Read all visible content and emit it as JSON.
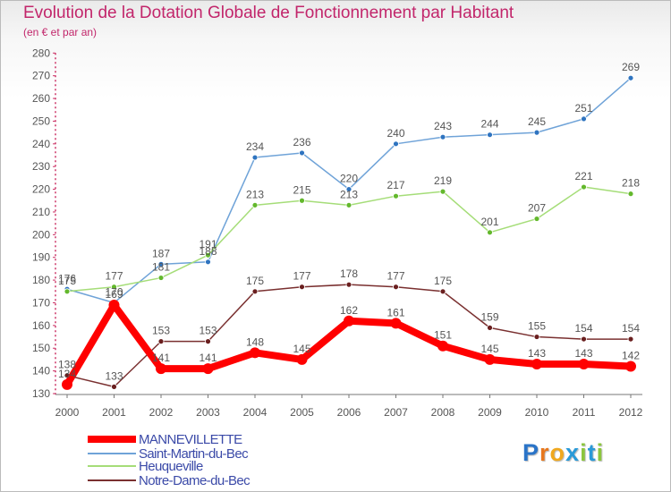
{
  "title": "Evolution de la Dotation Globale de Fonctionnement par Habitant",
  "subtitle": "(en € et par an)",
  "logo": {
    "letters": [
      "P",
      "r",
      "o",
      "x",
      "i",
      "t",
      "i"
    ],
    "colors": [
      "#2a74c8",
      "#e8781e",
      "#f0a81e",
      "#2a9ad8",
      "#8cc63e",
      "#2a9ad8",
      "#8cc63e"
    ]
  },
  "chart_data": {
    "type": "line",
    "categories": [
      "2000",
      "2001",
      "2002",
      "2003",
      "2004",
      "2005",
      "2006",
      "2007",
      "2008",
      "2009",
      "2010",
      "2011",
      "2012"
    ],
    "ylim": [
      130,
      280
    ],
    "ytick_labels": [
      "130",
      "140",
      "150",
      "160",
      "170",
      "180",
      "190",
      "200",
      "210",
      "220",
      "230",
      "240",
      "250",
      "260",
      "270",
      "280"
    ],
    "series": [
      {
        "name": "Saint-Martin-du-Bec",
        "color": "#6fa3d8",
        "marker": "#2f74c0",
        "values": [
          176,
          170,
          187,
          188,
          234,
          236,
          220,
          240,
          243,
          244,
          245,
          251,
          269
        ],
        "labels": [
          "176",
          "170",
          "187",
          "188",
          "234",
          "236",
          "220",
          "240",
          "243",
          "244",
          "245",
          "251",
          "269"
        ]
      },
      {
        "name": "Heuqueville",
        "color": "#a5dd78",
        "marker": "#63b82c",
        "values": [
          175,
          177,
          181,
          191,
          213,
          215,
          213,
          217,
          219,
          201,
          207,
          221,
          218
        ],
        "labels": [
          "175",
          "177",
          "181",
          "191",
          "213",
          "215",
          "213",
          "217",
          "219",
          "201",
          "207",
          "221",
          "218"
        ]
      },
      {
        "name": "Notre-Dame-du-Bec",
        "color": "#7a3030",
        "marker": "#6a1f1f",
        "values": [
          138,
          133,
          153,
          153,
          175,
          177,
          178,
          177,
          175,
          159,
          155,
          154,
          154
        ],
        "labels": [
          "138",
          "133",
          "153",
          "153",
          "175",
          "177",
          "178",
          "177",
          "175",
          "159",
          "155",
          "154",
          "154"
        ]
      },
      {
        "name": "MANNEVILLETTE",
        "color": "#ff0000",
        "marker": "#ff0000",
        "values": [
          134,
          169,
          141,
          141,
          148,
          145,
          162,
          161,
          151,
          145,
          143,
          143,
          142
        ],
        "labels": [
          "134",
          "169",
          "141",
          "141",
          "148",
          "145",
          "162",
          "161",
          "151",
          "145",
          "143",
          "143",
          "142"
        ]
      }
    ],
    "legend": [
      "MANNEVILLETTE",
      "Saint-Martin-du-Bec",
      "Heuqueville",
      "Notre-Dame-du-Bec"
    ],
    "legend_position": "bottom-left",
    "grid": false
  }
}
